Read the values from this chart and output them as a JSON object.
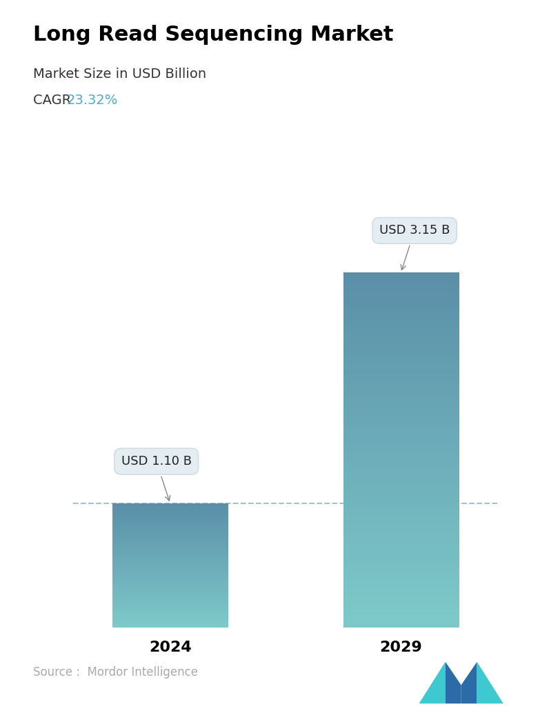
{
  "title": "Long Read Sequencing Market",
  "subtitle": "Market Size in USD Billion",
  "cagr_label": "CAGR ",
  "cagr_value": "23.32%",
  "cagr_color": "#4AAFCE",
  "categories": [
    "2024",
    "2029"
  ],
  "values": [
    1.1,
    3.15
  ],
  "bar_labels": [
    "USD 1.10 B",
    "USD 3.15 B"
  ],
  "bar_top_color": "#5B8FA8",
  "bar_bottom_color": "#7ECACA",
  "dashed_line_y": 1.1,
  "dashed_line_color": "#99BBCC",
  "source_text": "Source :  Mordor Intelligence",
  "source_color": "#AAAAAA",
  "background_color": "#FFFFFF",
  "ylim": [
    0,
    3.8
  ],
  "title_fontsize": 22,
  "subtitle_fontsize": 14,
  "cagr_fontsize": 14,
  "bar_label_fontsize": 13,
  "xtick_fontsize": 16,
  "source_fontsize": 12,
  "logo_left_color": "#3EC8D0",
  "logo_mid_color": "#2B6CA8",
  "logo_right_color": "#3EC8D0"
}
